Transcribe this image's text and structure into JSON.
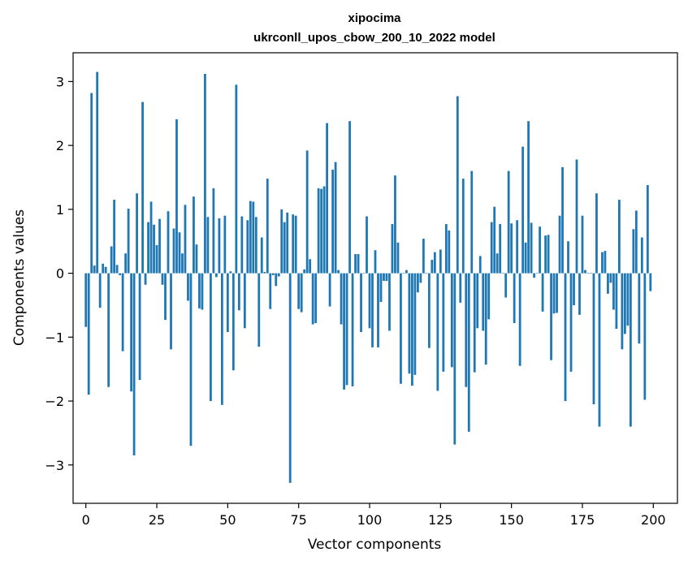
{
  "chart_data": {
    "type": "bar",
    "title": "xipocima",
    "subtitle": "ukrconll_upos_cbow_200_10_2022 model",
    "xlabel": "Vector components",
    "ylabel": "Components values",
    "xlim": [
      -4.5,
      208.5
    ],
    "ylim": [
      -3.6,
      3.45
    ],
    "xticks": [
      0,
      25,
      50,
      75,
      100,
      125,
      150,
      175,
      200
    ],
    "yticks": [
      -3,
      -2,
      -1,
      0,
      1,
      2,
      3
    ],
    "ytick_labels": [
      "−3",
      "−2",
      "−1",
      "0",
      "1",
      "2",
      "3"
    ],
    "grid": false,
    "bar_color": "#1f77b4",
    "x": [
      0,
      1,
      2,
      3,
      4,
      5,
      6,
      7,
      8,
      9,
      10,
      11,
      12,
      13,
      14,
      15,
      16,
      17,
      18,
      19,
      20,
      21,
      22,
      23,
      24,
      25,
      26,
      27,
      28,
      29,
      30,
      31,
      32,
      33,
      34,
      35,
      36,
      37,
      38,
      39,
      40,
      41,
      42,
      43,
      44,
      45,
      46,
      47,
      48,
      49,
      50,
      51,
      52,
      53,
      54,
      55,
      56,
      57,
      58,
      59,
      60,
      61,
      62,
      63,
      64,
      65,
      66,
      67,
      68,
      69,
      70,
      71,
      72,
      73,
      74,
      75,
      76,
      77,
      78,
      79,
      80,
      81,
      82,
      83,
      84,
      85,
      86,
      87,
      88,
      89,
      90,
      91,
      92,
      93,
      94,
      95,
      96,
      97,
      98,
      99,
      100,
      101,
      102,
      103,
      104,
      105,
      106,
      107,
      108,
      109,
      110,
      111,
      112,
      113,
      114,
      115,
      116,
      117,
      118,
      119,
      120,
      121,
      122,
      123,
      124,
      125,
      126,
      127,
      128,
      129,
      130,
      131,
      132,
      133,
      134,
      135,
      136,
      137,
      138,
      139,
      140,
      141,
      142,
      143,
      144,
      145,
      146,
      147,
      148,
      149,
      150,
      151,
      152,
      153,
      154,
      155,
      156,
      157,
      158,
      159,
      160,
      161,
      162,
      163,
      164,
      165,
      166,
      167,
      168,
      169,
      170,
      171,
      172,
      173,
      174,
      175,
      176,
      177,
      178,
      179,
      180,
      181,
      182,
      183,
      184,
      185,
      186,
      187,
      188,
      189,
      190,
      191,
      192,
      193,
      194,
      195,
      196,
      197,
      198,
      199
    ],
    "values": [
      -0.84,
      -1.9,
      2.82,
      0.12,
      3.15,
      -0.54,
      0.15,
      0.1,
      -1.78,
      0.42,
      1.15,
      0.13,
      -0.03,
      -1.22,
      0.31,
      1.01,
      -1.85,
      -2.85,
      1.25,
      -1.67,
      2.68,
      -0.18,
      0.8,
      1.12,
      0.76,
      0.44,
      0.85,
      -0.18,
      -0.73,
      0.97,
      -1.19,
      0.7,
      2.41,
      0.64,
      0.31,
      1.07,
      -0.43,
      -2.7,
      1.2,
      0.45,
      -0.55,
      -0.57,
      3.12,
      0.88,
      -2.0,
      1.33,
      -0.06,
      0.86,
      -2.06,
      0.9,
      -0.92,
      0.03,
      -1.52,
      2.95,
      -0.58,
      0.89,
      -0.86,
      0.83,
      1.13,
      1.12,
      0.88,
      -1.15,
      0.56,
      0.02,
      1.48,
      -0.56,
      -0.03,
      -0.2,
      -0.05,
      1.0,
      0.8,
      0.95,
      -3.28,
      0.92,
      0.9,
      -0.56,
      -0.61,
      0.06,
      1.92,
      0.22,
      -0.8,
      -0.78,
      1.33,
      1.32,
      1.36,
      2.35,
      -0.52,
      1.62,
      1.74,
      0.05,
      -0.8,
      -1.82,
      -1.75,
      2.38,
      -1.77,
      0.3,
      0.3,
      -0.92,
      0.0,
      0.89,
      -0.86,
      -1.16,
      0.36,
      -1.16,
      -0.45,
      -0.12,
      -0.12,
      -0.9,
      0.77,
      1.53,
      0.48,
      -1.73,
      0.0,
      0.05,
      -1.57,
      -1.76,
      -1.59,
      -0.3,
      -0.15,
      0.54,
      0.0,
      -1.17,
      0.21,
      0.33,
      -1.84,
      0.37,
      -1.54,
      0.77,
      0.67,
      -1.47,
      -2.68,
      2.77,
      -0.46,
      1.48,
      -1.78,
      -2.48,
      1.6,
      -1.55,
      -0.86,
      0.27,
      -0.9,
      -1.43,
      -0.72,
      0.8,
      1.04,
      0.31,
      0.77,
      0.0,
      -0.38,
      1.6,
      0.78,
      -0.78,
      0.83,
      -1.45,
      1.98,
      0.48,
      2.38,
      0.79,
      -0.07,
      0.0,
      0.73,
      -0.6,
      0.59,
      0.6,
      -1.36,
      -0.63,
      -0.62,
      0.9,
      1.66,
      -2.0,
      0.5,
      -1.54,
      -0.5,
      1.78,
      -0.65,
      0.9,
      0.05,
      0.0,
      0.0,
      -2.05,
      1.25,
      -2.4,
      0.33,
      0.35,
      -0.32,
      -0.15,
      -0.57,
      -0.87,
      1.15,
      -1.19,
      -0.95,
      -0.82,
      -2.4,
      0.69,
      0.98,
      -1.1,
      0.56,
      -1.98,
      1.38,
      -0.28
    ]
  }
}
